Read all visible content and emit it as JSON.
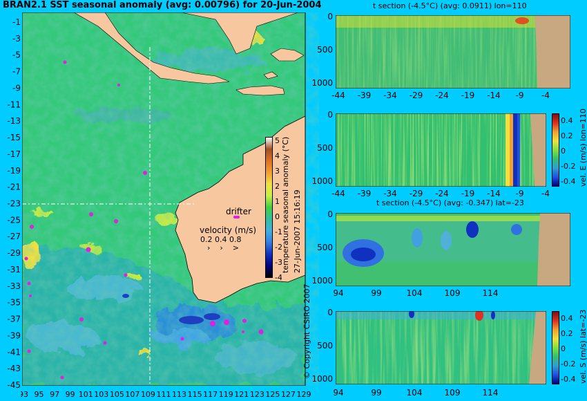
{
  "main_title": "BRAN2.1 SST seasonal anomaly (avg: 0.00796) for 20-Jun-2004",
  "map": {
    "lat_ticks": [
      "-1",
      "-3",
      "-5",
      "-7",
      "-9",
      "-11",
      "-13",
      "-15",
      "-17",
      "-19",
      "-21",
      "-23",
      "-25",
      "-27",
      "-29",
      "-31",
      "-33",
      "-35",
      "-37",
      "-39",
      "-41",
      "-43",
      "-45"
    ],
    "lon_ticks": [
      "93",
      "95",
      "97",
      "99",
      "101",
      "103",
      "105",
      "107",
      "109",
      "111",
      "113",
      "115",
      "117",
      "119",
      "121",
      "123",
      "125",
      "127",
      "129"
    ],
    "colorbar": {
      "label": "temperature seasonal anomaly (°C)",
      "ticks": [
        "5",
        "4",
        "3",
        "2",
        "1",
        "0",
        "-1",
        "-2",
        "-3",
        "-4"
      ],
      "colors": [
        "#ffffff",
        "#a05020",
        "#e07020",
        "#f0a030",
        "#f0e040",
        "#c8f040",
        "#40d040",
        "#30c0a0",
        "#40b0e0",
        "#3080e0",
        "#1030c0",
        "#000080",
        "#000000"
      ]
    },
    "legend": {
      "drifter": "drifter",
      "velocity_title": "velocity (m/s)",
      "velocity_values": "0.2  0.4  0.8"
    },
    "section_line_lon": "111",
    "section_line_lat": "-23"
  },
  "side_texts": {
    "timestamp": "27-Jun-2007 15:16:19",
    "copyright": "© Copyright CSIRO 2007"
  },
  "panels": [
    {
      "title": "t section (-4.5°C) (avg: 0.0911) lon=110",
      "y_ticks": [
        "0",
        "500",
        "1000"
      ],
      "x_ticks": [
        "-44",
        "-39",
        "-34",
        "-29",
        "-24",
        "-19",
        "-14",
        "-9",
        "-4"
      ],
      "colorbar_label": ""
    },
    {
      "title": "",
      "y_ticks": [
        "0",
        "500",
        "1000"
      ],
      "x_ticks": [
        "-44",
        "-39",
        "-34",
        "-29",
        "-24",
        "-19",
        "-14",
        "-9",
        "-4"
      ],
      "colorbar_label": "vel. E (m/s) lon=110",
      "colorbar_ticks": [
        "0.4",
        "0.2",
        "0",
        "-0.2",
        "-0.4"
      ]
    },
    {
      "title": "t section (-4.5°C) (avg: -0.347) lat=-23",
      "y_ticks": [
        "0",
        "500",
        "1000"
      ],
      "x_ticks": [
        "94",
        "99",
        "104",
        "109",
        "114"
      ],
      "colorbar_label": ""
    },
    {
      "title": "",
      "y_ticks": [
        "0",
        "500",
        "1000"
      ],
      "x_ticks": [
        "94",
        "99",
        "104",
        "109",
        "114"
      ],
      "colorbar_label": "vel. S (m/s) lat=-23",
      "colorbar_ticks": [
        "0.4",
        "0.2",
        "0",
        "-0.2",
        "-0.4"
      ]
    }
  ]
}
